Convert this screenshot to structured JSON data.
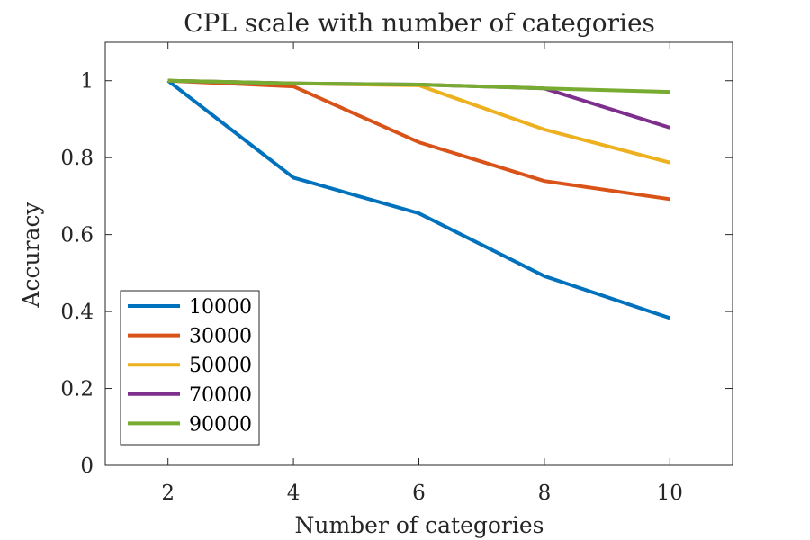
{
  "chart_data": {
    "type": "line",
    "title": "CPL scale with number of categories",
    "xlabel": "Number of categories",
    "ylabel": "Accuracy",
    "x": [
      2,
      4,
      6,
      8,
      10
    ],
    "x_ticks": [
      "2",
      "4",
      "6",
      "8",
      "10"
    ],
    "y_ticks": [
      "0",
      "0.2",
      "0.4",
      "0.6",
      "0.8",
      "1"
    ],
    "xlim": [
      1,
      11
    ],
    "ylim": [
      0,
      1.1
    ],
    "grid": false,
    "legend_position": "bottom-left",
    "series": [
      {
        "name": "10000",
        "color": "#0072BD",
        "values": [
          1.0,
          0.748,
          0.655,
          0.492,
          0.383
        ]
      },
      {
        "name": "30000",
        "color": "#D95319",
        "values": [
          1.0,
          0.985,
          0.84,
          0.739,
          0.692
        ]
      },
      {
        "name": "50000",
        "color": "#EDB120",
        "values": [
          1.0,
          0.993,
          0.988,
          0.873,
          0.787
        ]
      },
      {
        "name": "70000",
        "color": "#7E2F8E",
        "values": [
          1.0,
          0.993,
          0.99,
          0.98,
          0.878
        ]
      },
      {
        "name": "90000",
        "color": "#77AC30",
        "values": [
          1.0,
          0.993,
          0.99,
          0.98,
          0.971
        ]
      }
    ]
  }
}
